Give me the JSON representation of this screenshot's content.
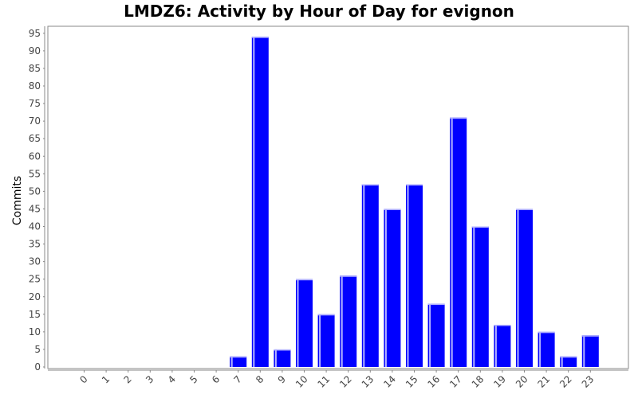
{
  "chart_data": {
    "type": "bar",
    "title": "LMDZ6: Activity by Hour of Day for evignon",
    "xlabel": "",
    "ylabel": "Commits",
    "categories": [
      "0",
      "1",
      "2",
      "3",
      "4",
      "5",
      "6",
      "7",
      "8",
      "9",
      "10",
      "11",
      "12",
      "13",
      "14",
      "15",
      "16",
      "17",
      "18",
      "19",
      "20",
      "21",
      "22",
      "23"
    ],
    "values": [
      0,
      0,
      0,
      0,
      0,
      0,
      0,
      3,
      94,
      5,
      25,
      15,
      26,
      52,
      45,
      52,
      18,
      71,
      40,
      12,
      45,
      10,
      3,
      9
    ],
    "ylim": [
      0,
      97
    ],
    "yticks": [
      0,
      5,
      10,
      15,
      20,
      25,
      30,
      35,
      40,
      45,
      50,
      55,
      60,
      65,
      70,
      75,
      80,
      85,
      90,
      95
    ],
    "grid": false,
    "legend": "none",
    "colors": {
      "bar": "#0000ff",
      "bar_highlight": "#b3b3ff",
      "plot_border": "#888888",
      "background": "#ffffff"
    }
  }
}
